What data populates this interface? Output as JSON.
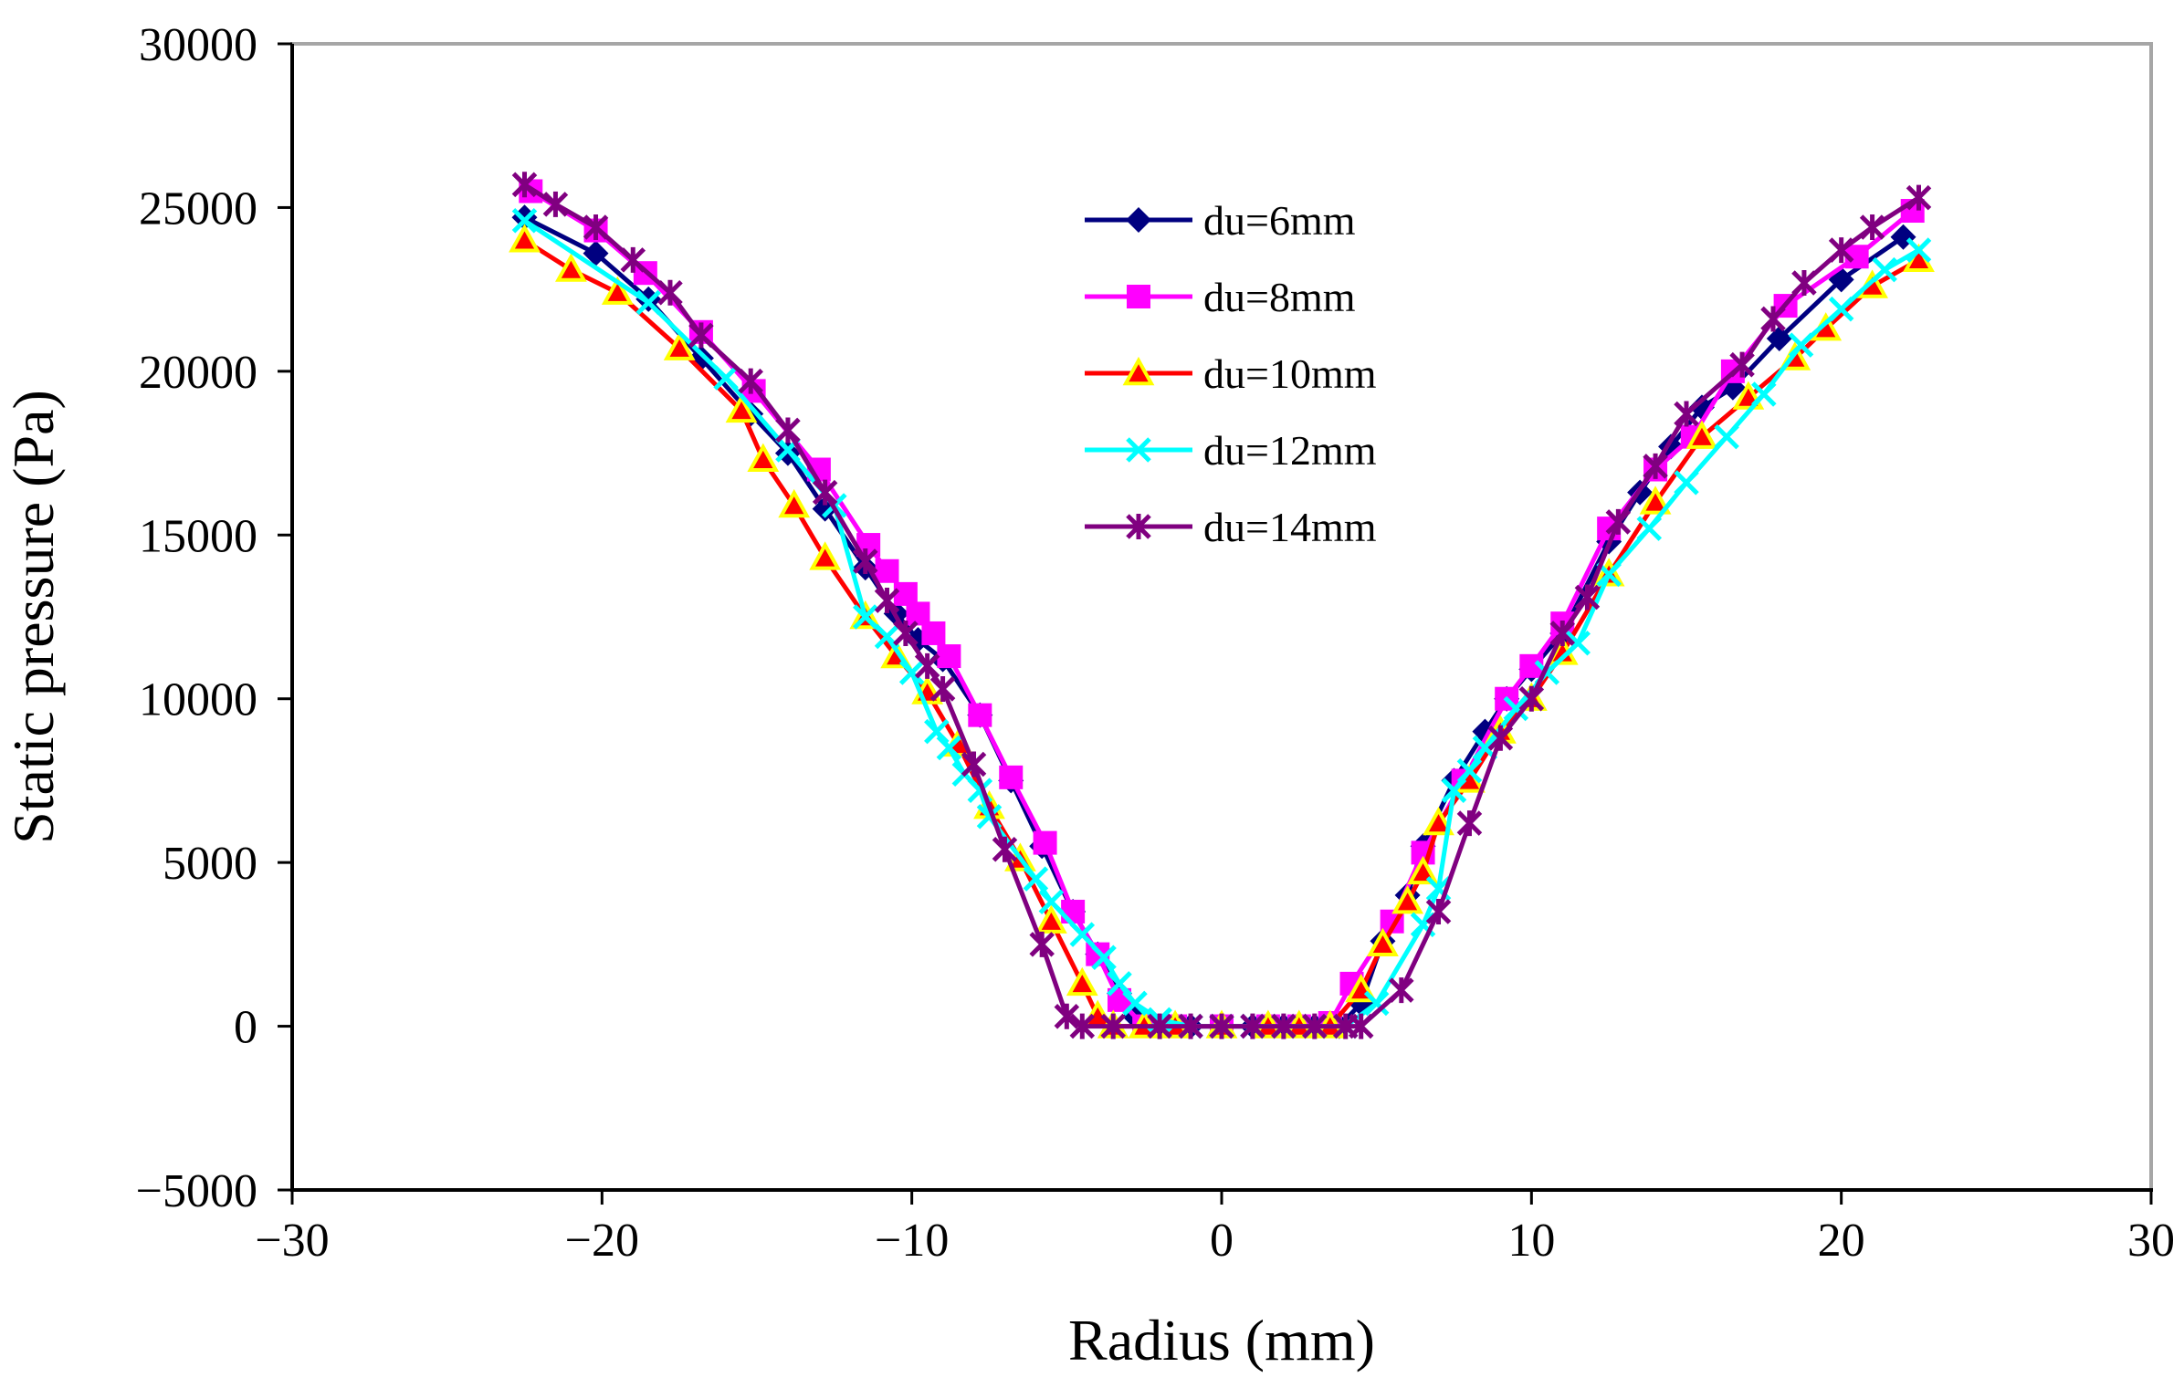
{
  "chart_data": {
    "type": "line",
    "title": "",
    "xlabel": "Radius (mm)",
    "ylabel": "Static pressure (Pa)",
    "xlim": [
      -30,
      30
    ],
    "ylim": [
      -5000,
      30000
    ],
    "x_ticks": [
      -30,
      -20,
      -10,
      0,
      10,
      20,
      30
    ],
    "y_ticks": [
      -5000,
      0,
      5000,
      10000,
      15000,
      20000,
      25000,
      30000
    ],
    "x_tick_labels": [
      "−30",
      "−20",
      "−10",
      "0",
      "10",
      "20",
      "30"
    ],
    "y_tick_labels": [
      "−5000",
      "0",
      "5000",
      "10000",
      "15000",
      "20000",
      "25000",
      "30000"
    ],
    "grid": false,
    "legend_position": "top-center",
    "series": [
      {
        "name": "du=6mm",
        "color": "#000080",
        "marker": "diamond",
        "points": [
          [
            -22.5,
            24700
          ],
          [
            -20.2,
            23600
          ],
          [
            -18.5,
            22200
          ],
          [
            -16.8,
            20400
          ],
          [
            -15.2,
            18700
          ],
          [
            -14.0,
            17500
          ],
          [
            -12.8,
            15800
          ],
          [
            -11.5,
            14000
          ],
          [
            -10.5,
            12600
          ],
          [
            -9.8,
            11800
          ],
          [
            -9.0,
            11200
          ],
          [
            -7.8,
            9500
          ],
          [
            -6.8,
            7500
          ],
          [
            -5.8,
            5500
          ],
          [
            -4.8,
            3500
          ],
          [
            -4.0,
            2200
          ],
          [
            -3.3,
            1000
          ],
          [
            -2.8,
            300
          ],
          [
            -2.0,
            0
          ],
          [
            -1.0,
            0
          ],
          [
            0,
            0
          ],
          [
            1.0,
            0
          ],
          [
            2.0,
            0
          ],
          [
            3.0,
            0
          ],
          [
            3.8,
            0
          ],
          [
            4.5,
            700
          ],
          [
            5.2,
            2600
          ],
          [
            6.0,
            4000
          ],
          [
            6.5,
            5500
          ],
          [
            7.5,
            7500
          ],
          [
            8.5,
            9000
          ],
          [
            9.2,
            10000
          ],
          [
            10.0,
            10900
          ],
          [
            11.0,
            12000
          ],
          [
            12.5,
            14800
          ],
          [
            13.5,
            16300
          ],
          [
            14.5,
            17700
          ],
          [
            15.5,
            18900
          ],
          [
            16.5,
            19500
          ],
          [
            18.0,
            21000
          ],
          [
            20.0,
            22800
          ],
          [
            22.0,
            24100
          ]
        ]
      },
      {
        "name": "du=8mm",
        "color": "#FF00FF",
        "marker": "square",
        "points": [
          [
            -22.3,
            25500
          ],
          [
            -20.2,
            24300
          ],
          [
            -18.6,
            23000
          ],
          [
            -16.8,
            21200
          ],
          [
            -15.1,
            19400
          ],
          [
            -13.0,
            17000
          ],
          [
            -11.4,
            14700
          ],
          [
            -10.8,
            13900
          ],
          [
            -10.2,
            13200
          ],
          [
            -9.8,
            12600
          ],
          [
            -9.3,
            12000
          ],
          [
            -8.8,
            11300
          ],
          [
            -7.8,
            9500
          ],
          [
            -6.8,
            7600
          ],
          [
            -5.7,
            5600
          ],
          [
            -4.8,
            3500
          ],
          [
            -4.0,
            2200
          ],
          [
            -3.3,
            800
          ],
          [
            -2.5,
            0
          ],
          [
            -1.5,
            0
          ],
          [
            0,
            0
          ],
          [
            1.5,
            0
          ],
          [
            2.5,
            0
          ],
          [
            3.5,
            100
          ],
          [
            4.2,
            1300
          ],
          [
            5.5,
            3200
          ],
          [
            6.5,
            5300
          ],
          [
            7.8,
            7500
          ],
          [
            9.2,
            10000
          ],
          [
            10.0,
            11000
          ],
          [
            11.0,
            12300
          ],
          [
            12.5,
            15200
          ],
          [
            14.0,
            17000
          ],
          [
            15.2,
            18000
          ],
          [
            16.5,
            20000
          ],
          [
            18.2,
            22000
          ],
          [
            20.5,
            23500
          ],
          [
            22.3,
            24900
          ]
        ]
      },
      {
        "name": "du=10mm",
        "color": "#FF0000",
        "marker": "triangle",
        "points": [
          [
            -22.5,
            24000
          ],
          [
            -21.0,
            23100
          ],
          [
            -19.5,
            22400
          ],
          [
            -17.5,
            20700
          ],
          [
            -15.5,
            18800
          ],
          [
            -14.8,
            17300
          ],
          [
            -13.8,
            15900
          ],
          [
            -12.8,
            14300
          ],
          [
            -11.5,
            12500
          ],
          [
            -10.5,
            11300
          ],
          [
            -9.5,
            10200
          ],
          [
            -8.5,
            8600
          ],
          [
            -7.5,
            6700
          ],
          [
            -6.5,
            5100
          ],
          [
            -5.5,
            3200
          ],
          [
            -4.5,
            1300
          ],
          [
            -4.0,
            300
          ],
          [
            -3.5,
            0
          ],
          [
            -2.5,
            0
          ],
          [
            -1.5,
            0
          ],
          [
            0,
            0
          ],
          [
            1.5,
            0
          ],
          [
            2.5,
            0
          ],
          [
            3.5,
            0
          ],
          [
            4.5,
            1100
          ],
          [
            5.2,
            2500
          ],
          [
            6.0,
            3800
          ],
          [
            6.5,
            4700
          ],
          [
            7.0,
            6200
          ],
          [
            8.0,
            7500
          ],
          [
            9.0,
            9000
          ],
          [
            10.0,
            10000
          ],
          [
            11.0,
            11400
          ],
          [
            12.5,
            13800
          ],
          [
            14.0,
            16000
          ],
          [
            15.5,
            18000
          ],
          [
            17.0,
            19200
          ],
          [
            18.5,
            20400
          ],
          [
            19.5,
            21300
          ],
          [
            21.0,
            22600
          ],
          [
            22.5,
            23400
          ]
        ]
      },
      {
        "name": "du=12mm",
        "color": "#00FFFF",
        "marker": "x",
        "points": [
          [
            -22.5,
            24600
          ],
          [
            -18.5,
            22100
          ],
          [
            -16.0,
            19800
          ],
          [
            -14.0,
            17600
          ],
          [
            -12.5,
            15900
          ],
          [
            -11.5,
            12500
          ],
          [
            -10.8,
            11900
          ],
          [
            -10.0,
            10800
          ],
          [
            -9.2,
            9000
          ],
          [
            -8.8,
            8500
          ],
          [
            -8.3,
            7700
          ],
          [
            -7.8,
            7200
          ],
          [
            -7.5,
            6400
          ],
          [
            -6.0,
            4500
          ],
          [
            -5.5,
            3800
          ],
          [
            -4.5,
            2800
          ],
          [
            -3.8,
            2100
          ],
          [
            -3.3,
            1300
          ],
          [
            -2.8,
            700
          ],
          [
            -2.0,
            200
          ],
          [
            -1.0,
            0
          ],
          [
            0,
            0
          ],
          [
            1.0,
            0
          ],
          [
            2.0,
            0
          ],
          [
            3.0,
            0
          ],
          [
            4.0,
            0
          ],
          [
            5.0,
            700
          ],
          [
            6.5,
            3100
          ],
          [
            7.0,
            4200
          ],
          [
            7.5,
            7200
          ],
          [
            8.0,
            7800
          ],
          [
            8.5,
            8500
          ],
          [
            9.5,
            9700
          ],
          [
            10.5,
            10800
          ],
          [
            11.5,
            11700
          ],
          [
            12.5,
            13800
          ],
          [
            13.8,
            15200
          ],
          [
            15.0,
            16600
          ],
          [
            16.3,
            18000
          ],
          [
            17.5,
            19300
          ],
          [
            18.7,
            20800
          ],
          [
            20.0,
            21900
          ],
          [
            21.4,
            23100
          ],
          [
            22.5,
            23700
          ]
        ]
      },
      {
        "name": "du=14mm",
        "color": "#800080",
        "marker": "star",
        "points": [
          [
            -22.5,
            25700
          ],
          [
            -21.5,
            25100
          ],
          [
            -20.2,
            24400
          ],
          [
            -19.0,
            23400
          ],
          [
            -17.8,
            22400
          ],
          [
            -16.8,
            21100
          ],
          [
            -15.2,
            19700
          ],
          [
            -14.0,
            18200
          ],
          [
            -12.8,
            16300
          ],
          [
            -11.5,
            14200
          ],
          [
            -10.8,
            13000
          ],
          [
            -10.2,
            12000
          ],
          [
            -9.5,
            11000
          ],
          [
            -9.0,
            10300
          ],
          [
            -8.0,
            8000
          ],
          [
            -7.0,
            5400
          ],
          [
            -5.8,
            2500
          ],
          [
            -5.0,
            300
          ],
          [
            -4.5,
            0
          ],
          [
            -3.5,
            0
          ],
          [
            -2.0,
            0
          ],
          [
            -1.0,
            0
          ],
          [
            0,
            0
          ],
          [
            1.0,
            0
          ],
          [
            2.0,
            0
          ],
          [
            3.0,
            0
          ],
          [
            4.0,
            0
          ],
          [
            4.5,
            0
          ],
          [
            5.8,
            1100
          ],
          [
            7.0,
            3500
          ],
          [
            8.0,
            6200
          ],
          [
            9.0,
            8800
          ],
          [
            10.0,
            10000
          ],
          [
            11.0,
            12000
          ],
          [
            11.8,
            13100
          ],
          [
            12.8,
            15400
          ],
          [
            14.0,
            17100
          ],
          [
            15.0,
            18700
          ],
          [
            16.8,
            20200
          ],
          [
            17.8,
            21600
          ],
          [
            18.8,
            22700
          ],
          [
            20.0,
            23700
          ],
          [
            21.0,
            24400
          ],
          [
            22.5,
            25300
          ]
        ]
      }
    ]
  }
}
